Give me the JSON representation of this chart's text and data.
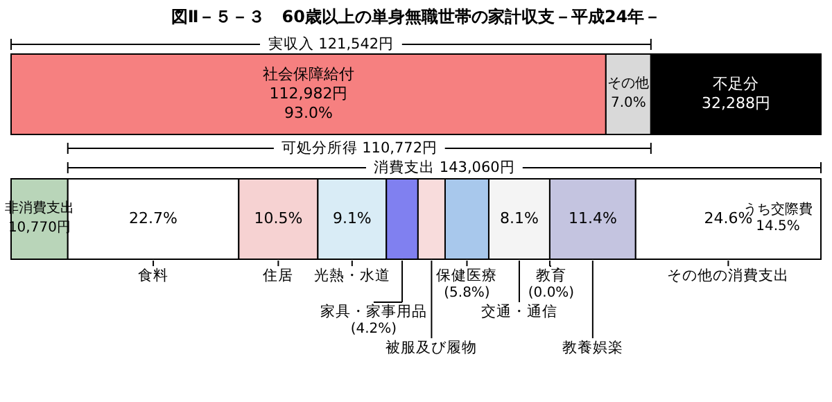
{
  "chart_data": {
    "type": "bar",
    "orientation": "horizontal",
    "stacked": true,
    "title": "図Ⅱ－５－３　60歳以上の単身無職世帯の家計収支－平成24年－",
    "categories": [
      null,
      null
    ],
    "series": [
      {
        "name": "社会保障給付",
        "color": "#f68080",
        "values": [
          112982,
          null
        ],
        "value_labels": [
          "112,982円",
          null
        ]
      },
      {
        "name": "その他",
        "color": "#d9d9d9",
        "values": [
          8560,
          null
        ]
      },
      {
        "name": "不足分",
        "color": "#000000",
        "values": [
          32288,
          null
        ],
        "value_labels": [
          "32,288円",
          null
        ]
      },
      {
        "name": "非消費支出",
        "color": "#b9d5b9",
        "values": [
          null,
          10770
        ],
        "value_labels": [
          null,
          "10,770円"
        ]
      },
      {
        "name": "食料",
        "color": "#ffffff",
        "values": [
          null,
          32475
        ]
      },
      {
        "name": "住居",
        "color": "#f6d2d2",
        "values": [
          null,
          15021
        ]
      },
      {
        "name": "光熱・水道",
        "color": "#d9ecf6",
        "values": [
          null,
          13018
        ]
      },
      {
        "name": "家具・家事用品",
        "color": "#8080f0",
        "values": [
          null,
          6009
        ]
      },
      {
        "name": "被服及び履物",
        "color": "#f8dcdc",
        "values": [
          null,
          5150
        ]
      },
      {
        "name": "保健医療",
        "color": "#a8c8ec",
        "values": [
          null,
          8297
        ]
      },
      {
        "name": "交通・通信",
        "color": "#f4f4f4",
        "values": [
          null,
          11588
        ]
      },
      {
        "name": "教育",
        "values": [
          null,
          0
        ]
      },
      {
        "name": "教養娯楽",
        "color": "#c4c4e0",
        "values": [
          null,
          16309
        ]
      },
      {
        "name": "その他の消費支出",
        "color": "#ffffff",
        "values": [
          null,
          35193
        ]
      }
    ],
    "legend": "bottom",
    "annotations": [
      "実収入 121,542円",
      "可処分所得 110,772円",
      "消費支出 143,060円",
      "うち交際費 14.5%",
      "93.0%",
      "7.0%",
      "22.7%",
      "10.5%",
      "9.1%",
      "(4.2%)",
      "(5.8%)",
      "8.1%",
      "(0.0%)",
      "11.4%",
      "24.6%"
    ]
  }
}
